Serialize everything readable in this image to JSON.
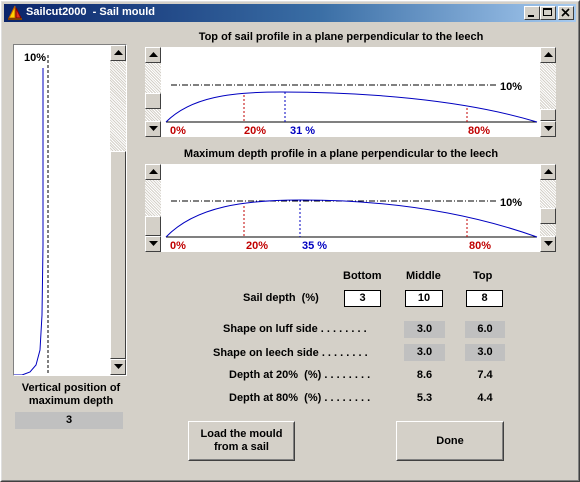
{
  "window": {
    "title": "Sailcut2000  - Sail mould",
    "icon": "sail-icon"
  },
  "titlebar_buttons": [
    "minimize-icon",
    "maximize-icon",
    "close-icon"
  ],
  "left_panel": {
    "marker_label": "10%",
    "caption": "Vertical position of\nmaximum depth",
    "value": "3"
  },
  "top_chart": {
    "title": "Top of sail profile in a plane perpendicular to the leech",
    "ref_label": "10%",
    "labels": {
      "p0": "0%",
      "p20": "20%",
      "pmax": "31 %",
      "p80": "80%"
    }
  },
  "max_chart": {
    "title": "Maximum depth profile in a plane perpendicular to the leech",
    "ref_label": "10%",
    "labels": {
      "p0": "0%",
      "p20": "20%",
      "pmax": "35 %",
      "p80": "80%"
    }
  },
  "table": {
    "headers": {
      "bottom": "Bottom",
      "middle": "Middle",
      "top": "Top"
    },
    "rows": {
      "sail_depth": {
        "label": "Sail depth  (%)",
        "bottom": "3",
        "middle": "10",
        "top": "8"
      },
      "luff_shape": {
        "label": "Shape on luff side . . . . . . . .",
        "middle": "3.0",
        "top": "6.0"
      },
      "leech_shape": {
        "label": "Shape on leech side . . . . . . . .",
        "middle": "3.0",
        "top": "3.0"
      },
      "depth20": {
        "label": "Depth at 20%  (%) . . . . . . . .",
        "middle": "8.6",
        "top": "7.4"
      },
      "depth80": {
        "label": "Depth at 80%  (%) . . . . . . . .",
        "middle": "5.3",
        "top": "4.4"
      }
    }
  },
  "buttons": {
    "load": "Load the mould\nfrom a sail",
    "done": "Done"
  },
  "colors": {
    "title_start": "#0a246a",
    "title_end": "#a6caf0",
    "curve": "#0000c0",
    "red_label": "#c00000",
    "blue_label": "#0000c0"
  }
}
